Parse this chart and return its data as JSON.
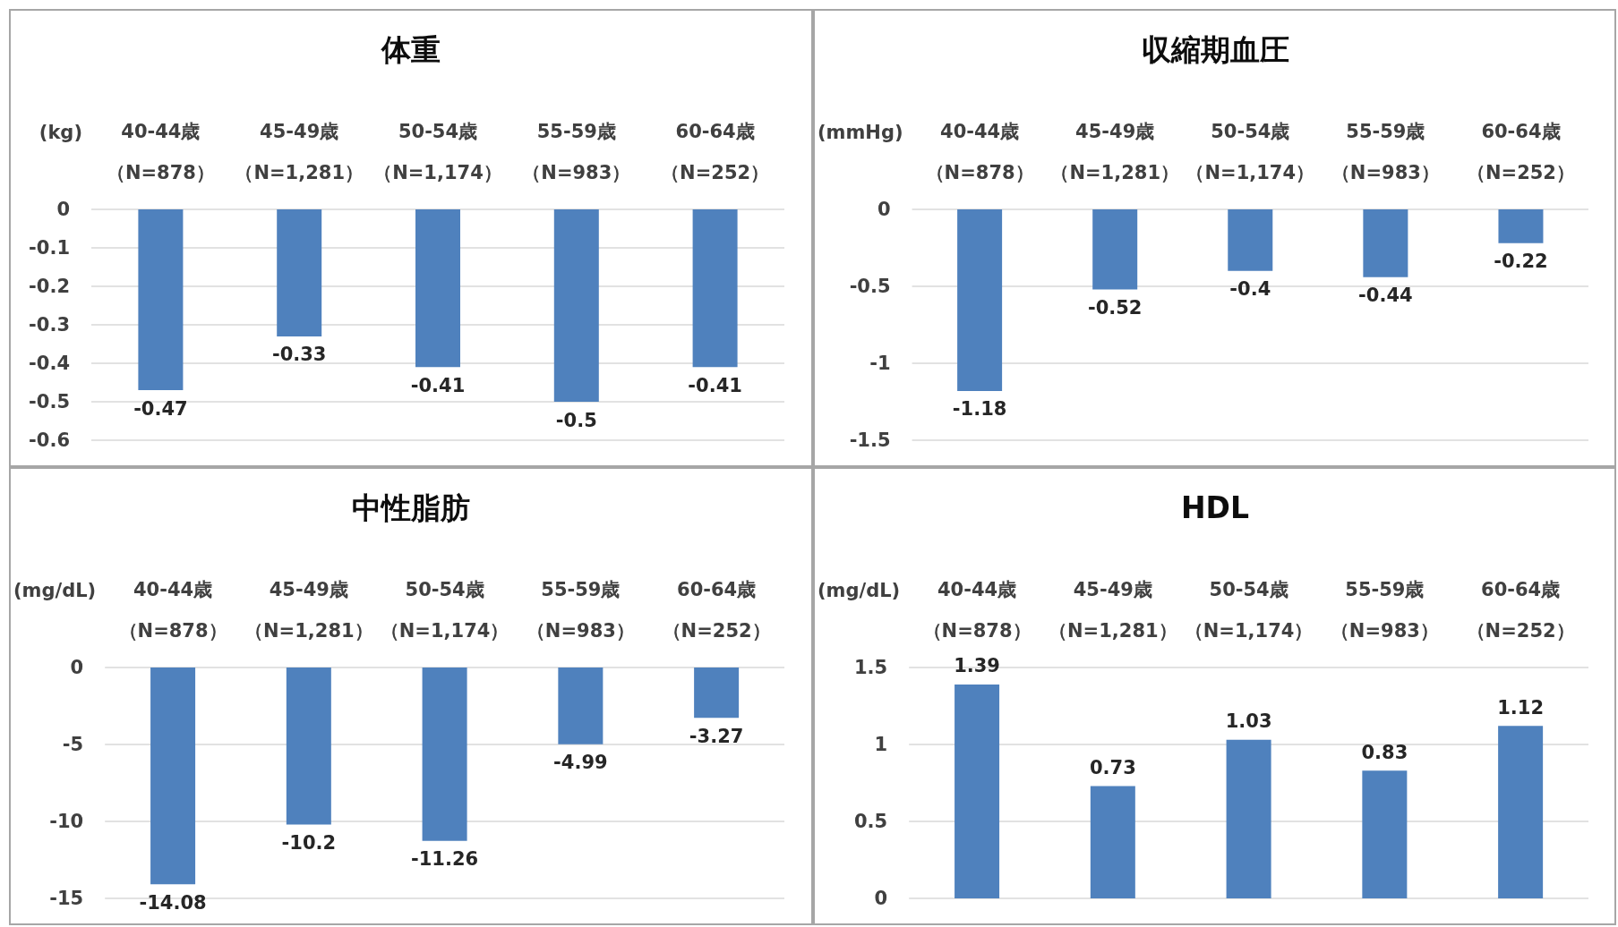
{
  "chart_data": [
    {
      "type": "bar",
      "title": "体重",
      "ylabel": "(kg)",
      "categories": [
        "40-44歳（N=878）",
        "45-49歳（N=1,281）",
        "50-54歳（N=1,174）",
        "55-59歳（N=983）",
        "60-64歳（N=252）"
      ],
      "values": [
        -0.47,
        -0.33,
        -0.41,
        -0.5,
        -0.41
      ],
      "color": "#4f81bd",
      "ylim": [
        -0.6,
        0
      ],
      "yticks": [
        0,
        -0.1,
        -0.2,
        -0.3,
        -0.4,
        -0.5,
        -0.6
      ],
      "grid": "y",
      "data_labels": true
    },
    {
      "type": "bar",
      "title": "収縮期血圧",
      "ylabel": "(mmHg)",
      "categories": [
        "40-44歳（N=878）",
        "45-49歳（N=1,281）",
        "50-54歳（N=1,174）",
        "55-59歳（N=983）",
        "60-64歳（N=252）"
      ],
      "values": [
        -1.18,
        -0.52,
        -0.4,
        -0.44,
        -0.22
      ],
      "color": "#4f81bd",
      "ylim": [
        -1.5,
        0
      ],
      "yticks": [
        0,
        -0.5,
        -1,
        -1.5
      ],
      "grid": "y",
      "data_labels": true
    },
    {
      "type": "bar",
      "title": "中性脂肪",
      "ylabel": "(mg/dL)",
      "categories": [
        "40-44歳（N=878）",
        "45-49歳（N=1,281）",
        "50-54歳（N=1,174）",
        "55-59歳（N=983）",
        "60-64歳（N=252）"
      ],
      "values": [
        -14.08,
        -10.2,
        -11.26,
        -4.99,
        -3.27
      ],
      "color": "#4f81bd",
      "ylim": [
        -15,
        0
      ],
      "yticks": [
        0,
        -5,
        -10,
        -15
      ],
      "grid": "y",
      "data_labels": true
    },
    {
      "type": "bar",
      "title": "HDL",
      "ylabel": "(mg/dL)",
      "categories": [
        "40-44歳（N=878）",
        "45-49歳（N=1,281）",
        "50-54歳（N=1,174）",
        "55-59歳（N=983）",
        "60-64歳（N=252）"
      ],
      "values": [
        1.39,
        0.73,
        1.03,
        0.83,
        1.12
      ],
      "color": "#4f81bd",
      "ylim": [
        0,
        1.5
      ],
      "yticks": [
        0,
        0.5,
        1,
        1.5
      ],
      "grid": "y",
      "data_labels": true
    }
  ]
}
